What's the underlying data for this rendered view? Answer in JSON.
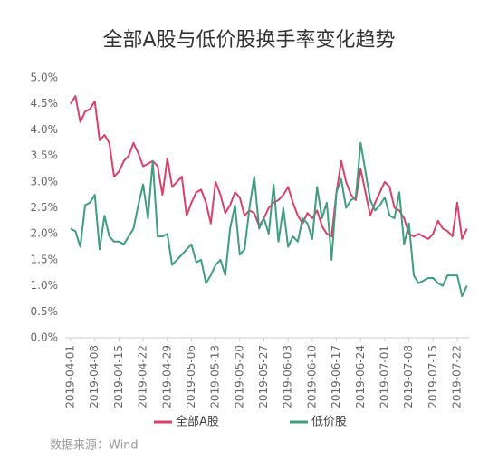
{
  "chart_data": {
    "type": "line",
    "title": "全部A股与低价股换手率变化趋势",
    "source": "数据来源：Wind",
    "categories": [
      "2019-04-01",
      null,
      null,
      null,
      null,
      "2019-04-08",
      null,
      null,
      null,
      null,
      "2019-04-15",
      null,
      null,
      null,
      null,
      "2019-04-22",
      null,
      null,
      null,
      null,
      "2019-04-29",
      null,
      null,
      null,
      null,
      "2019-05-06",
      null,
      null,
      null,
      null,
      "2019-05-13",
      null,
      null,
      null,
      null,
      "2019-05-20",
      null,
      null,
      null,
      null,
      "2019-05-27",
      null,
      null,
      null,
      null,
      "2019-06-03",
      null,
      null,
      null,
      null,
      "2019-06-10",
      null,
      null,
      null,
      null,
      "2019-06-17",
      null,
      null,
      null,
      null,
      "2019-06-24",
      null,
      null,
      null,
      null,
      "2019-07-01",
      null,
      null,
      null,
      null,
      "2019-07-08",
      null,
      null,
      null,
      null,
      "2019-07-15",
      null,
      null,
      null,
      null,
      "2019-07-22",
      null,
      null
    ],
    "series": [
      {
        "name": "全部A股",
        "color": "#d9416b",
        "values": [
          4.5,
          4.65,
          4.15,
          4.35,
          4.4,
          4.55,
          3.8,
          3.9,
          3.75,
          3.1,
          3.2,
          3.4,
          3.5,
          3.75,
          3.55,
          3.3,
          3.35,
          3.4,
          3.3,
          2.75,
          3.45,
          2.9,
          3.0,
          3.1,
          2.35,
          2.6,
          2.8,
          2.85,
          2.6,
          2.2,
          3.0,
          2.75,
          2.4,
          2.55,
          2.8,
          2.7,
          2.35,
          2.45,
          2.4,
          2.15,
          2.3,
          2.5,
          2.6,
          2.65,
          2.75,
          2.9,
          2.6,
          2.35,
          2.2,
          2.4,
          2.3,
          2.45,
          2.15,
          2.0,
          1.95,
          2.8,
          3.4,
          3.0,
          2.75,
          2.65,
          3.25,
          2.8,
          2.35,
          2.6,
          2.8,
          3.0,
          2.9,
          2.5,
          2.45,
          2.3,
          2.0,
          1.95,
          2.0,
          1.95,
          1.9,
          2.0,
          2.25,
          2.1,
          2.05,
          1.95,
          2.6,
          1.9,
          2.1
        ]
      },
      {
        "name": "低价股",
        "color": "#3e9e7e",
        "values": [
          2.1,
          2.05,
          1.75,
          2.55,
          2.6,
          2.75,
          1.7,
          2.35,
          1.95,
          1.85,
          1.85,
          1.8,
          1.95,
          2.1,
          2.55,
          2.95,
          2.3,
          3.4,
          1.95,
          1.95,
          2.0,
          1.4,
          1.5,
          1.6,
          1.7,
          1.8,
          1.45,
          1.5,
          1.05,
          1.2,
          1.4,
          1.5,
          1.2,
          2.1,
          2.55,
          1.6,
          1.7,
          2.5,
          3.1,
          2.1,
          2.3,
          2.0,
          2.95,
          1.85,
          2.5,
          1.75,
          1.95,
          1.85,
          2.3,
          2.2,
          1.9,
          2.9,
          2.3,
          2.6,
          1.5,
          2.8,
          3.05,
          2.5,
          2.65,
          2.7,
          3.75,
          3.2,
          2.65,
          2.45,
          2.55,
          2.7,
          2.35,
          2.3,
          2.8,
          1.8,
          2.2,
          1.2,
          1.05,
          1.1,
          1.15,
          1.15,
          1.05,
          1.0,
          1.2,
          1.2,
          1.2,
          0.8,
          1.0
        ]
      }
    ],
    "ylim": [
      0,
      5
    ],
    "yticks": [
      {
        "value": 0,
        "label": "0.0%"
      },
      {
        "value": 0.5,
        "label": "0.5%"
      },
      {
        "value": 1,
        "label": "1.0%"
      },
      {
        "value": 1.5,
        "label": "1.5%"
      },
      {
        "value": 2,
        "label": "2.0%"
      },
      {
        "value": 2.5,
        "label": "2.5%"
      },
      {
        "value": 3,
        "label": "3.0%"
      },
      {
        "value": 3.5,
        "label": "3.5%"
      },
      {
        "value": 4,
        "label": "4.0%"
      },
      {
        "value": 4.5,
        "label": "4.5%"
      },
      {
        "value": 5,
        "label": "5.0%"
      }
    ]
  }
}
